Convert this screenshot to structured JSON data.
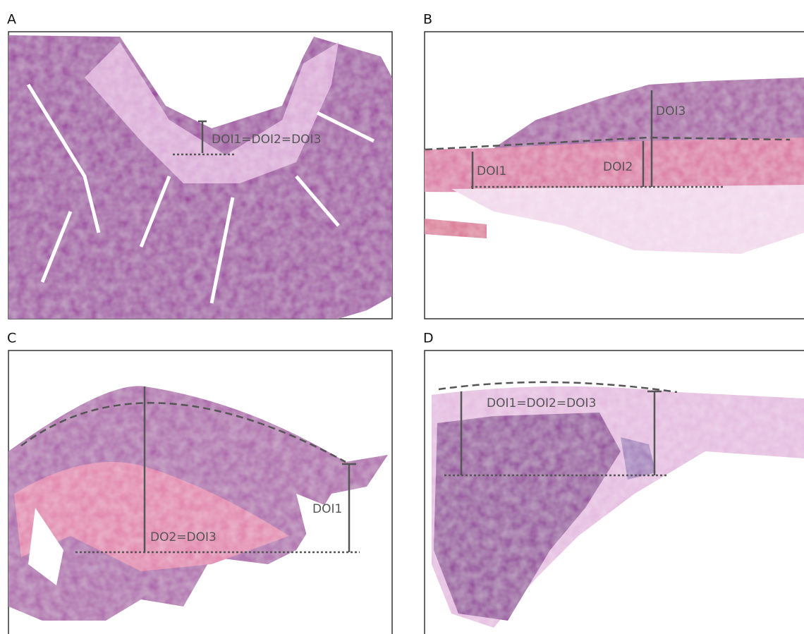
{
  "panels": [
    {
      "label": "A",
      "annotations": [
        "DOI1=DOI2=DOI3"
      ]
    },
    {
      "label": "B",
      "annotations": [
        "DOI3",
        "DOI1",
        "DOI2"
      ]
    },
    {
      "label": "C",
      "annotations": [
        "DOI1",
        "DO2=DOI3"
      ]
    },
    {
      "label": "D",
      "annotations": [
        "DOI1=DOI2=DOI3"
      ]
    }
  ]
}
